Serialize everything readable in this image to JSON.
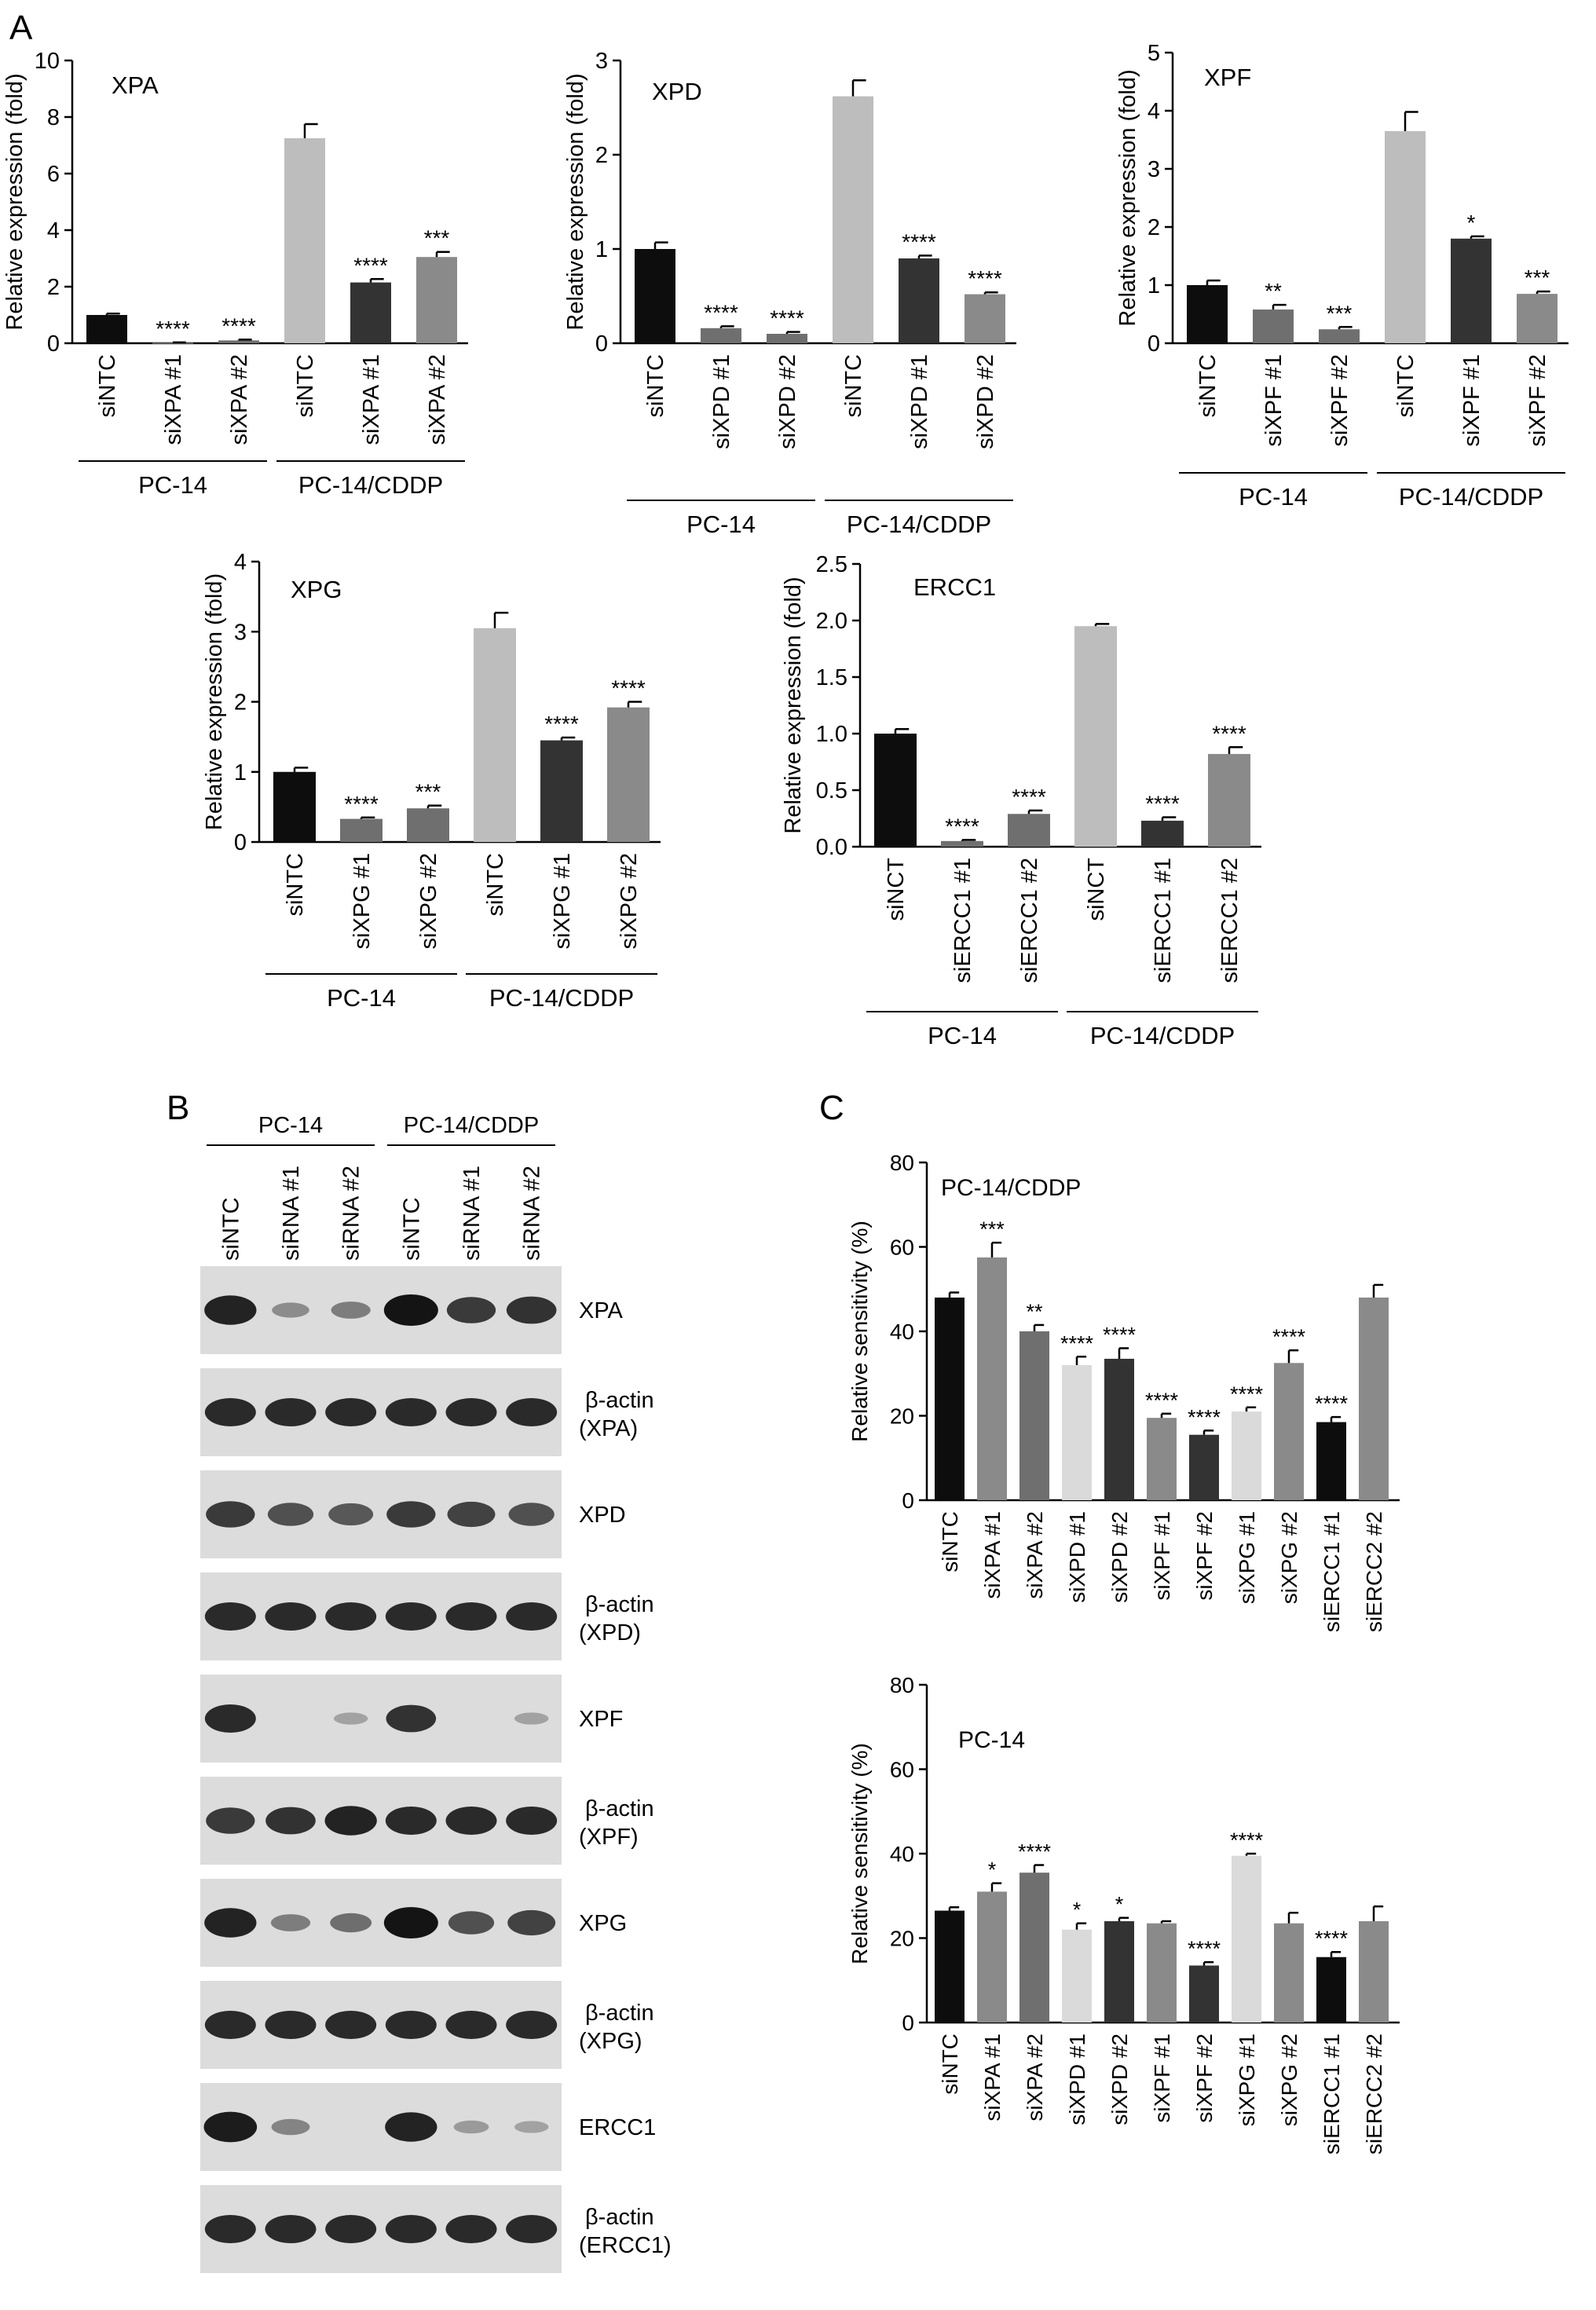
{
  "panels": [
    {
      "letter": "A"
    },
    {
      "letter": "B"
    },
    {
      "letter": "C"
    }
  ],
  "colors": {
    "bar_black": "#0d0d0d",
    "bar_mid": "#6f6f6f",
    "bar_light": "#bdbdbd",
    "bar_dark": "#333333",
    "bar_grey": "#8a8a8a",
    "bar_vlight": "#dadada",
    "blot_band": "#141414",
    "blot_bg": "#dcdcdc"
  },
  "chart_data": [
    {
      "id": "XPA",
      "type": "bar",
      "title": "XPA",
      "ylabel": "Relative expression (fold)",
      "ylim": [
        0,
        10
      ],
      "yticks": [
        "0",
        "2",
        "4",
        "6",
        "8",
        "10"
      ],
      "categories": [
        "siNTC",
        "siXPA #1",
        "siXPA #2",
        "siNTC",
        "siXPA #1",
        "siXPA #2"
      ],
      "values": [
        1.0,
        0.02,
        0.1,
        7.25,
        2.15,
        3.05
      ],
      "errors": [
        0.05,
        0.01,
        0.03,
        0.5,
        0.12,
        0.18
      ],
      "significance": [
        "",
        "****",
        "****",
        "",
        "****",
        "***"
      ],
      "groups": [
        "PC-14",
        "PC-14/CDDP"
      ]
    },
    {
      "id": "XPD",
      "type": "bar",
      "title": "XPD",
      "ylabel": "Relative expression (fold)",
      "ylim": [
        0,
        3
      ],
      "yticks": [
        "0",
        "1",
        "2",
        "3"
      ],
      "categories": [
        "siNTC",
        "siXPD #1",
        "siXPD #2",
        "siNTC",
        "siXPD #1",
        "siXPD #2"
      ],
      "values": [
        1.0,
        0.16,
        0.1,
        2.62,
        0.9,
        0.52
      ],
      "errors": [
        0.07,
        0.02,
        0.02,
        0.17,
        0.03,
        0.02
      ],
      "significance": [
        "",
        "****",
        "****",
        "",
        "****",
        "****"
      ],
      "groups": [
        "PC-14",
        "PC-14/CDDP"
      ]
    },
    {
      "id": "XPF",
      "type": "bar",
      "title": "XPF",
      "ylabel": "Relative expression (fold)",
      "ylim": [
        0,
        5
      ],
      "yticks": [
        "0",
        "1",
        "2",
        "3",
        "4",
        "5"
      ],
      "categories": [
        "siNTC",
        "siXPF #1",
        "siXPF #2",
        "siNTC",
        "siXPF #1",
        "siXPF #2"
      ],
      "values": [
        1.0,
        0.58,
        0.24,
        3.65,
        1.8,
        0.85
      ],
      "errors": [
        0.08,
        0.08,
        0.04,
        0.33,
        0.04,
        0.04
      ],
      "significance": [
        "",
        "**",
        "***",
        "",
        "*",
        "***"
      ],
      "groups": [
        "PC-14",
        "PC-14/CDDP"
      ]
    },
    {
      "id": "XPG",
      "type": "bar",
      "title": "XPG",
      "ylabel": "Relative expression (fold)",
      "ylim": [
        0,
        4
      ],
      "yticks": [
        "0",
        "1",
        "2",
        "3",
        "4"
      ],
      "categories": [
        "siNTC",
        "siXPG #1",
        "siXPG #2",
        "siNTC",
        "siXPG #1",
        "siXPG #2"
      ],
      "values": [
        1.0,
        0.33,
        0.48,
        3.05,
        1.45,
        1.92
      ],
      "errors": [
        0.06,
        0.02,
        0.04,
        0.22,
        0.04,
        0.08
      ],
      "significance": [
        "",
        "****",
        "***",
        "",
        "****",
        "****"
      ],
      "groups": [
        "PC-14",
        "PC-14/CDDP"
      ]
    },
    {
      "id": "ERCC1",
      "type": "bar",
      "title": "ERCC1",
      "ylabel": "Relative expression (fold)",
      "ylim": [
        0,
        2.5
      ],
      "yticks": [
        "0.0",
        "0.5",
        "1.0",
        "1.5",
        "2.0",
        "2.5"
      ],
      "categories": [
        "siNCT",
        "siERCC1 #1",
        "siERCC1 #2",
        "siNCT",
        "siERCC1 #1",
        "siERCC1 #2"
      ],
      "values": [
        1.0,
        0.05,
        0.29,
        1.95,
        0.23,
        0.82
      ],
      "errors": [
        0.04,
        0.01,
        0.03,
        0.02,
        0.03,
        0.06
      ],
      "significance": [
        "",
        "****",
        "****",
        "",
        "****",
        "****"
      ],
      "groups": [
        "PC-14",
        "PC-14/CDDP"
      ]
    },
    {
      "id": "sens_cddp",
      "type": "bar",
      "title": "PC-14/CDDP",
      "ylabel": "Relative sensitivity (%)",
      "ylim": [
        0,
        80
      ],
      "yticks": [
        "0",
        "20",
        "40",
        "60",
        "80"
      ],
      "categories": [
        "siNTC",
        "siXPA #1",
        "siXPA #2",
        "siXPD #1",
        "siXPD #2",
        "siXPF #1",
        "siXPF #2",
        "siXPG #1",
        "siXPG #2",
        "siERCC1 #1",
        "siERCC2 #2"
      ],
      "values": [
        48,
        57.5,
        40,
        32,
        33.5,
        19.5,
        15.5,
        21,
        32.5,
        18.5,
        48
      ],
      "errors": [
        1.2,
        3.5,
        1.5,
        2,
        2.5,
        1,
        1,
        1,
        3,
        1.2,
        3
      ],
      "significance": [
        "",
        "***",
        "**",
        "****",
        "****",
        "****",
        "****",
        "****",
        "****",
        "****",
        ""
      ]
    },
    {
      "id": "sens_pc14",
      "type": "bar",
      "title": "PC-14",
      "ylabel": "Relative sensitivity (%)",
      "ylim": [
        0,
        80
      ],
      "yticks": [
        "0",
        "20",
        "40",
        "60",
        "80"
      ],
      "categories": [
        "siNTC",
        "siXPA #1",
        "siXPA #2",
        "siXPD #1",
        "siXPD #2",
        "siXPF #1",
        "siXPF #2",
        "siXPG #1",
        "siXPG #2",
        "siERCC1 #1",
        "siERCC2 #2"
      ],
      "values": [
        26.5,
        31,
        35.5,
        22,
        24,
        23.5,
        13.5,
        39.5,
        23.5,
        15.5,
        24
      ],
      "errors": [
        0.8,
        2,
        1.8,
        1.5,
        0.8,
        0.5,
        0.8,
        0.5,
        2.5,
        1.2,
        3.5
      ],
      "significance": [
        "",
        "*",
        "****",
        "*",
        "*",
        "",
        "****",
        "****",
        "",
        "****",
        ""
      ]
    }
  ],
  "blot": {
    "groups": [
      "PC-14",
      "PC-14/CDDP"
    ],
    "lanes": [
      "siNTC",
      "siRNA #1",
      "siRNA #2",
      "siNTC",
      "siRNA #1",
      "siRNA #2"
    ],
    "rows": [
      {
        "label": [
          "XPA"
        ],
        "intensity": [
          0.9,
          0.2,
          0.3,
          1.0,
          0.75,
          0.8
        ]
      },
      {
        "label": [
          "β-actin",
          "(XPA)"
        ],
        "intensity": [
          0.85,
          0.85,
          0.85,
          0.85,
          0.85,
          0.85
        ]
      },
      {
        "label": [
          "XPD"
        ],
        "intensity": [
          0.75,
          0.6,
          0.55,
          0.75,
          0.7,
          0.6
        ]
      },
      {
        "label": [
          "β-actin",
          "(XPD)"
        ],
        "intensity": [
          0.85,
          0.85,
          0.85,
          0.85,
          0.85,
          0.85
        ]
      },
      {
        "label": [
          "XPF"
        ],
        "intensity": [
          0.85,
          0.0,
          0.05,
          0.8,
          0.0,
          0.05
        ]
      },
      {
        "label": [
          "β-actin",
          "(XPF)"
        ],
        "intensity": [
          0.75,
          0.8,
          0.9,
          0.85,
          0.85,
          0.85
        ]
      },
      {
        "label": [
          "XPG"
        ],
        "intensity": [
          0.9,
          0.3,
          0.4,
          1.0,
          0.6,
          0.7
        ]
      },
      {
        "label": [
          "β-actin",
          "(XPG)"
        ],
        "intensity": [
          0.85,
          0.85,
          0.85,
          0.85,
          0.85,
          0.85
        ]
      },
      {
        "label": [
          "ERCC1"
        ],
        "intensity": [
          0.95,
          0.25,
          0.0,
          0.9,
          0.1,
          0.05
        ]
      },
      {
        "label": [
          "β-actin",
          "(ERCC1)"
        ],
        "intensity": [
          0.85,
          0.85,
          0.85,
          0.85,
          0.85,
          0.85
        ]
      }
    ]
  }
}
